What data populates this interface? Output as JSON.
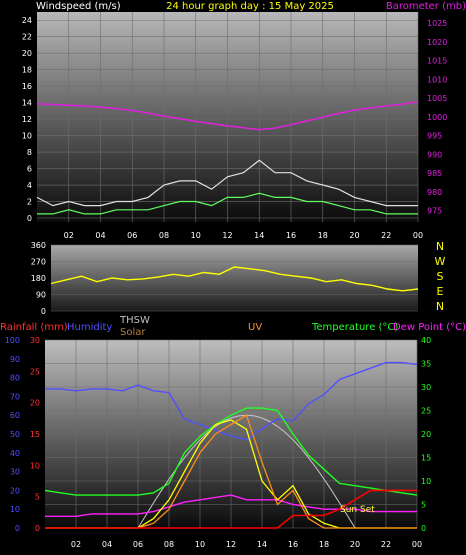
{
  "chart_data": [
    {
      "type": "line",
      "panel": "wind-barometer",
      "title": "24 hour graph day : 15 May 2025",
      "ylabel_left": "Windspeed (m/s)",
      "ylabel_right": "Barometer (mb)",
      "left_ticks": [
        "0",
        "2",
        "4",
        "6",
        "8",
        "10",
        "12",
        "14",
        "16",
        "18",
        "20",
        "22",
        "24"
      ],
      "right_ticks": [
        "975",
        "980",
        "985",
        "990",
        "995",
        "1000",
        "1005",
        "1010",
        "1015",
        "1020",
        "1025"
      ],
      "x_ticks": [
        "02",
        "04",
        "06",
        "08",
        "10",
        "12",
        "14",
        "16",
        "18",
        "20",
        "22",
        "00"
      ],
      "ylim_left": [
        0,
        25
      ],
      "ylim_right": [
        973,
        1028
      ],
      "grid": true,
      "colors": {
        "barometer": "#e020e0",
        "gust": "#e0e0e0",
        "wind": "#60ff60",
        "title": "#ffff00"
      },
      "series": [
        {
          "name": "Barometer",
          "x": [
            0,
            1,
            2,
            3,
            4,
            5,
            6,
            7,
            8,
            9,
            10,
            11,
            12,
            13,
            14,
            15,
            16,
            17,
            18,
            19,
            20,
            21,
            22,
            23,
            24
          ],
          "values": [
            1003.5,
            1003.3,
            1003.1,
            1002.9,
            1002.6,
            1002.2,
            1001.7,
            1001.0,
            1000.2,
            999.5,
            998.8,
            998.2,
            997.6,
            997.1,
            996.6,
            997.0,
            997.9,
            998.9,
            999.9,
            1000.9,
            1001.8,
            1002.4,
            1002.9,
            1003.4,
            1004.0
          ]
        },
        {
          "name": "Wind Gust",
          "x": [
            0,
            1,
            2,
            3,
            4,
            5,
            6,
            7,
            8,
            9,
            10,
            11,
            12,
            13,
            14,
            15,
            16,
            17,
            18,
            19,
            20,
            21,
            22,
            23,
            24
          ],
          "values": [
            2.5,
            1.5,
            2.0,
            1.5,
            1.5,
            2.0,
            2.0,
            2.5,
            4.0,
            4.5,
            4.5,
            3.5,
            5.0,
            5.5,
            7.0,
            5.5,
            5.5,
            4.5,
            4.0,
            3.5,
            2.5,
            2.0,
            1.5,
            1.5,
            1.5
          ]
        },
        {
          "name": "Wind Speed",
          "x": [
            0,
            1,
            2,
            3,
            4,
            5,
            6,
            7,
            8,
            9,
            10,
            11,
            12,
            13,
            14,
            15,
            16,
            17,
            18,
            19,
            20,
            21,
            22,
            23,
            24
          ],
          "values": [
            0.5,
            0.5,
            1.0,
            0.5,
            0.5,
            1.0,
            1.0,
            1.0,
            1.5,
            2.0,
            2.0,
            1.5,
            2.5,
            2.5,
            3.0,
            2.5,
            2.5,
            2.0,
            2.0,
            1.5,
            1.0,
            1.0,
            0.5,
            0.5,
            0.5
          ]
        }
      ]
    },
    {
      "type": "line",
      "panel": "wind-direction",
      "left_ticks": [
        "0",
        "90",
        "180",
        "270",
        "360"
      ],
      "compass_labels": [
        "N",
        "W",
        "S",
        "E",
        "N"
      ],
      "ylim": [
        0,
        360
      ],
      "grid": true,
      "colors": {
        "direction": "#ffff00",
        "compass": "#ffff00"
      },
      "series": [
        {
          "name": "Wind Direction",
          "x": [
            0,
            1,
            2,
            3,
            4,
            5,
            6,
            7,
            8,
            9,
            10,
            11,
            12,
            13,
            14,
            15,
            16,
            17,
            18,
            19,
            20,
            21,
            22,
            23,
            24
          ],
          "values": [
            150,
            170,
            190,
            160,
            180,
            170,
            175,
            185,
            200,
            190,
            210,
            200,
            240,
            230,
            220,
            200,
            190,
            180,
            160,
            170,
            150,
            140,
            120,
            110,
            120
          ]
        }
      ]
    },
    {
      "type": "line",
      "panel": "temperature-rain-solar",
      "legend_labels": {
        "rainfall": "Rainfall (mm)",
        "humidity": "Humidity",
        "thsw": "THSW",
        "solar": "Solar",
        "uv": "UV",
        "temperature": "Temperature (°C)",
        "dewpoint": "Dew Point (°C)"
      },
      "annotation": "Sun Set",
      "rain_ticks": [
        "0",
        "5",
        "10",
        "15",
        "20",
        "25",
        "30"
      ],
      "humidity_ticks": [
        "0",
        "10",
        "20",
        "30",
        "40",
        "50",
        "60",
        "70",
        "80",
        "90",
        "100"
      ],
      "temp_ticks": [
        "0",
        "5",
        "10",
        "15",
        "20",
        "25",
        "30",
        "35",
        "40"
      ],
      "x_ticks": [
        "02",
        "04",
        "06",
        "08",
        "10",
        "12",
        "14",
        "16",
        "18",
        "20",
        "22",
        "00"
      ],
      "ylim_temp": [
        0,
        40
      ],
      "grid": true,
      "colors": {
        "rainfall": "#ff3030",
        "humidity": "#5050ff",
        "thsw": "#c0c0c0",
        "solar": "#b08040",
        "uv": "#ff9020",
        "temperature": "#20ff20",
        "dewpoint": "#ff20ff",
        "rain_line": "#ff0000",
        "solar_curve": "#c8c8c8",
        "uv_bars": "#ff8c1a",
        "yellow": "#ffff00"
      },
      "series": [
        {
          "name": "Humidity",
          "axis": "humidity",
          "x": [
            0,
            1,
            2,
            3,
            4,
            5,
            6,
            7,
            8,
            9,
            10,
            11,
            12,
            13,
            14,
            15,
            16,
            17,
            18,
            19,
            20,
            21,
            22,
            23,
            24
          ],
          "values": [
            74,
            74,
            73,
            74,
            74,
            73,
            76,
            73,
            72,
            58,
            55,
            52,
            49,
            47,
            53,
            58,
            57,
            66,
            71,
            79,
            82,
            85,
            88,
            88,
            87
          ]
        },
        {
          "name": "Temperature",
          "axis": "temp",
          "x": [
            0,
            1,
            2,
            3,
            4,
            5,
            6,
            7,
            8,
            9,
            10,
            11,
            12,
            13,
            14,
            15,
            16,
            17,
            18,
            19,
            20,
            21,
            22,
            23,
            24
          ],
          "values": [
            8.0,
            7.5,
            7.0,
            7.0,
            7.0,
            7.0,
            7.0,
            7.5,
            9.5,
            16.0,
            19.5,
            22.0,
            24.0,
            25.5,
            25.5,
            25.0,
            20.0,
            15.5,
            12.5,
            9.5,
            9.0,
            8.5,
            8.0,
            7.5,
            7.0
          ]
        },
        {
          "name": "Dew Point",
          "axis": "temp",
          "x": [
            0,
            1,
            2,
            3,
            4,
            5,
            6,
            7,
            8,
            9,
            10,
            11,
            12,
            13,
            14,
            15,
            16,
            17,
            18,
            19,
            20,
            21,
            22,
            23,
            24
          ],
          "values": [
            2.5,
            2.5,
            2.5,
            3.0,
            3.0,
            3.0,
            3.0,
            3.5,
            4.5,
            5.5,
            6.0,
            6.5,
            7.0,
            6.0,
            6.0,
            6.0,
            5.0,
            4.5,
            4.0,
            4.0,
            4.0,
            3.5,
            3.5,
            3.5,
            3.5
          ]
        },
        {
          "name": "THSW",
          "axis": "temp",
          "x": [
            0,
            1,
            2,
            3,
            4,
            5,
            6,
            7,
            8,
            9,
            10,
            11,
            12,
            13,
            14,
            15,
            16,
            17,
            18,
            19,
            20,
            21,
            22,
            23,
            24
          ],
          "values": [
            0,
            0,
            0,
            0,
            0,
            0,
            0,
            2,
            6,
            12,
            18,
            22,
            23,
            21,
            10,
            6,
            9,
            3,
            1,
            0,
            0,
            0,
            0,
            0,
            0
          ]
        },
        {
          "name": "Solar",
          "axis": "temp",
          "x": [
            0,
            1,
            2,
            3,
            4,
            5,
            6,
            7,
            8,
            9,
            10,
            11,
            12,
            13,
            14,
            15,
            16,
            17,
            18,
            19,
            20,
            21,
            22,
            23,
            24
          ],
          "values": [
            0,
            0,
            0,
            0,
            0,
            0,
            0,
            1,
            4,
            10,
            16,
            20,
            22,
            24,
            14,
            5,
            8,
            2,
            0,
            0,
            0,
            0,
            0,
            0,
            0
          ]
        },
        {
          "name": "Rainfall",
          "axis": "rain",
          "x": [
            0,
            1,
            2,
            3,
            4,
            5,
            6,
            7,
            8,
            9,
            10,
            11,
            12,
            13,
            14,
            15,
            16,
            17,
            18,
            19,
            20,
            21,
            22,
            23,
            24
          ],
          "values": [
            0,
            0,
            0,
            0,
            0,
            0,
            0,
            0,
            0,
            0,
            0,
            0,
            0,
            0,
            0,
            0,
            2.0,
            2.0,
            2.0,
            3.0,
            4.5,
            6.0,
            6.0,
            6.0,
            6.0
          ]
        }
      ]
    }
  ]
}
